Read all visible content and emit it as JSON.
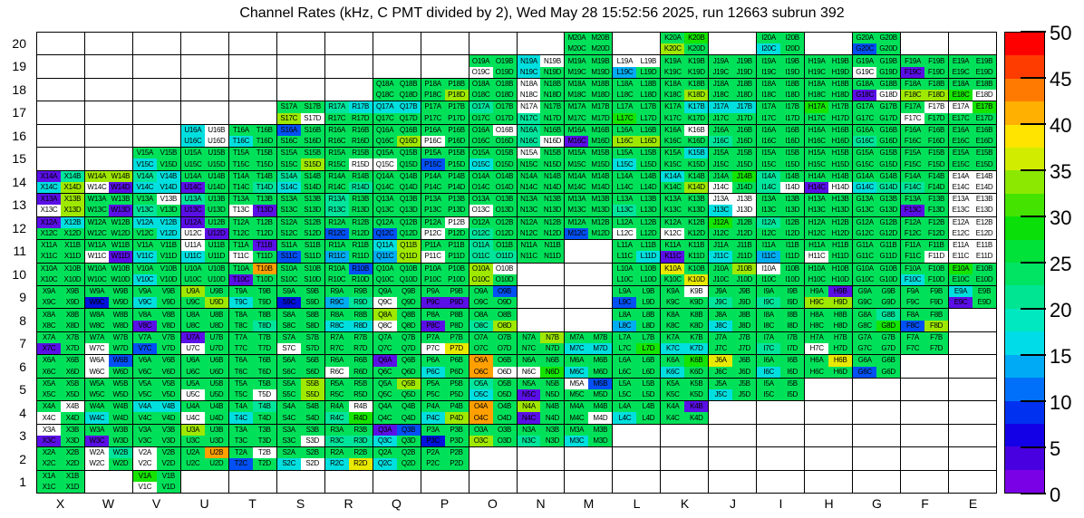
{
  "chart_data": {
    "type": "heatmap",
    "title": "Channel Rates (kHz, C PMT divided by 2), Wed May 28 15:52:56 2025, run 12663 subrun 392",
    "x_axis_labels": [
      "X",
      "W",
      "V",
      "U",
      "T",
      "S",
      "R",
      "Q",
      "P",
      "O",
      "N",
      "M",
      "L",
      "K",
      "J",
      "I",
      "H",
      "G",
      "F",
      "E"
    ],
    "y_axis_labels": [
      20,
      19,
      18,
      17,
      16,
      15,
      14,
      13,
      12,
      11,
      10,
      9,
      8,
      7,
      6,
      5,
      4,
      3,
      2,
      1
    ],
    "quadrant_suffixes": [
      "A",
      "B",
      "C",
      "D"
    ],
    "colorbar": {
      "min": 0,
      "max": 50,
      "tick_values": [
        50,
        45,
        40,
        35,
        30,
        25,
        20,
        15,
        10,
        5,
        0
      ],
      "band_colors_bottom_to_top": [
        "#7A00E6",
        "#4800E0",
        "#1400E6",
        "#0031F0",
        "#0070FA",
        "#00AAF5",
        "#00DCE8",
        "#00E8C0",
        "#00E592",
        "#00E363",
        "#00E139",
        "#0ADF0A",
        "#45E300",
        "#8CE800",
        "#D2EC00",
        "#FFE400",
        "#FFB000",
        "#FF7A00",
        "#FF3C00",
        "#FF0000"
      ]
    },
    "palette": {
      "g": "#00E159",
      "G": "#15E400",
      "t": "#00E59B",
      "c": "#00DFDF",
      "b": "#00ACF2",
      "B": "#0050F5",
      "D": "#0012DC",
      "P": "#5A0FE6",
      "y": "#9FE800",
      "Y": "#E9E900",
      "O": "#FFA000",
      "W": "#FFFFFF"
    },
    "cells_by_row": {
      "20": {
        "M": "gggg",
        "K": "gGyg",
        "I": "ggcg",
        "G": "ggBg"
      },
      "19": {
        "O": "ggWg",
        "N": "cWcg",
        "M": "gggg",
        "L": "WWbg",
        "K": "gggg",
        "J": "gggg",
        "I": "gggg",
        "H": "gggg",
        "G": "ggWg",
        "F": "ggPg",
        "E": "gggg"
      },
      "18": {
        "Q": "gggg",
        "P": "gggy",
        "O": "gggg",
        "N": "WgWg",
        "M": "gggg",
        "L": "gggg",
        "K": "gggy",
        "J": "gggg",
        "I": "gggg",
        "H": "gggg",
        "G": "ggPW",
        "F": "ggyy",
        "E": "ggGW"
      },
      "17": {
        "S": "ggyW",
        "R": "tcgg",
        "Q": "ccgg",
        "P": "gggg",
        "O": "tggg",
        "N": "Wgtg",
        "M": "gggg",
        "L": "ggGg",
        "K": "gcgg",
        "J": "ccgg",
        "I": "gggg",
        "H": "Gggg",
        "G": "gggg",
        "F": "gWWg",
        "E": "WGgg"
      },
      "16": {
        "U": "cWcW",
        "T": "ggcg",
        "S": "Bggg",
        "R": "gggg",
        "Q": "gggy",
        "P": "ggWg",
        "O": "gWgg",
        "N": "tgtW",
        "M": "ggPg",
        "L": "ggyy",
        "K": "gWgg",
        "J": "ggtg",
        "I": "gggg",
        "H": "gggg",
        "G": "ggtg",
        "F": "gggg",
        "E": "gggg"
      },
      "15": {
        "V": "ggcg",
        "U": "gggg",
        "T": "gggg",
        "S": "gggy",
        "R": "gggW",
        "Q": "ggWg",
        "P": "ggBg",
        "O": "ggcg",
        "N": "Wggg",
        "M": "gggg",
        "L": "ggcg",
        "K": "gcgg",
        "J": "gggg",
        "I": "gggg",
        "H": "gggg",
        "G": "gggg",
        "F": "gggg",
        "E": "gggg"
      },
      "14": {
        "X": "Ptcy",
        "W": "yyWP",
        "V": "tccc",
        "U": "ggPg",
        "T": "gggt",
        "S": "tgcg",
        "R": "gggt",
        "Q": "gggg",
        "P": "gggg",
        "O": "gggg",
        "N": "gggg",
        "M": "gggg",
        "L": "gggg",
        "K": "cggy",
        "J": "gGWg",
        "I": "tgtW",
        "H": "ggPW",
        "G": "ggct",
        "F": "ggtg",
        "E": "WWWW"
      },
      "13": {
        "X": "PyWy",
        "W": "gggP",
        "V": "gWtg",
        "U": "tgPg",
        "T": "ggWP",
        "S": "gggg",
        "R": "tgtg",
        "Q": "gggg",
        "P": "gggg",
        "O": "ggWg",
        "N": "gggg",
        "M": "gggg",
        "L": "ggtg",
        "K": "gggg",
        "J": "WWcW",
        "I": "gggg",
        "H": "gggg",
        "G": "gggg",
        "F": "ggPg",
        "E": "WWWW"
      },
      "12": {
        "X": "Pcgg",
        "W": "gggg",
        "V": "ccgc",
        "U": "PgWP",
        "T": "gggg",
        "S": "gggg",
        "R": "ggBg",
        "Q": "ggBg",
        "P": "gWWg",
        "O": "ggtg",
        "N": "gggg",
        "M": "ggBg",
        "L": "ggWg",
        "K": "ggWg",
        "J": "Gggg",
        "I": "tggg",
        "H": "gggg",
        "G": "gggg",
        "F": "gggg",
        "E": "WWWW"
      },
      "11": {
        "X": "gggg",
        "W": "ggWP",
        "V": "ggcg",
        "U": "Wgcg",
        "T": "gPWg",
        "S": "ggBg",
        "R": "ggbg",
        "Q": "cyby",
        "P": "ggWg",
        "O": "tgtt",
        "N": "gggg",
        "L": "gggc",
        "K": "ggPg",
        "J": "ggcg",
        "I": "ggbg",
        "H": "ggWg",
        "G": "gggg",
        "F": "gggW",
        "E": "WWWW"
      },
      "10": {
        "X": "gggg",
        "W": "gggg",
        "V": "ggcg",
        "U": "gggg",
        "T": "gOPg",
        "S": "gggg",
        "R": "gBgg",
        "Q": "gggg",
        "P": "gggg",
        "O": "yWyg",
        "L": "gggg",
        "K": "YggY",
        "J": "gygg",
        "I": "Wggg",
        "H": "gggg",
        "G": "gggg",
        "F": "ggcg",
        "E": "Gggg"
      },
      "9": {
        "X": "gggg",
        "W": "ggDg",
        "V": "ggcg",
        "U": "yggy",
        "T": "ggcg",
        "S": "ggDg",
        "R": "ggbt",
        "Q": "ggWg",
        "P": "ggPP",
        "O": "gBgg",
        "L": "ggBg",
        "K": "gWgg",
        "J": "ggtg",
        "I": "ggtg",
        "H": "gPyy",
        "G": "gggg",
        "F": "gggg",
        "E": "cgPg"
      },
      "8": {
        "X": "gggg",
        "W": "gggg",
        "V": "ggPg",
        "U": "gggg",
        "T": "gggt",
        "S": "gggg",
        "R": "ggcc",
        "Q": "ygWg",
        "P": "ggPg",
        "O": "ggty",
        "L": "ggbg",
        "K": "gggg",
        "J": "ggcg",
        "I": "gggg",
        "H": "gggg",
        "G": "gtgG",
        "F": "ggBy"
      },
      "7": {
        "X": "ggPg",
        "W": "ggWg",
        "V": "ggBg",
        "U": "PgWg",
        "T": "gggg",
        "S": "ggWg",
        "R": "gggg",
        "Q": "gggg",
        "P": "ggWY",
        "O": "gggg",
        "N": "gygg",
        "M": "ggcc",
        "L": "gggG",
        "K": "ggcc",
        "J": "gggg",
        "I": "ggtg",
        "H": "ggWg",
        "G": "gggg",
        "F": "gggg"
      },
      "6": {
        "X": "gggg",
        "W": "WBWg",
        "V": "gggg",
        "U": "gggg",
        "T": "gggg",
        "S": "gggg",
        "R": "ggWg",
        "Q": "Pggg",
        "P": "ggcg",
        "O": "OgOW",
        "N": "ggWG",
        "M": "ggcg",
        "L": "gggg",
        "K": "gGcg",
        "J": "Yggg",
        "I": "ggcg",
        "H": "gYgg",
        "G": "ggBg"
      },
      "5": {
        "X": "gggg",
        "W": "gggg",
        "V": "gggg",
        "U": "ggWg",
        "T": "gggW",
        "S": "gygy",
        "R": "gggg",
        "Q": "gygg",
        "P": "gggg",
        "O": "tgcg",
        "N": "ggPg",
        "M": "WBgg",
        "L": "gggg",
        "K": "gggg",
        "J": "ggcg",
        "I": "gggg"
      },
      "4": {
        "X": "gWWg",
        "W": "ggcg",
        "V": "ccgg",
        "U": "ggWg",
        "T": "gtcg",
        "S": "gggg",
        "R": "gWtG",
        "Q": "gggg",
        "P": "ggcy",
        "O": "OgOg",
        "N": "ygPg",
        "M": "gggW",
        "L": "ggcg",
        "K": "gPgg"
      },
      "3": {
        "X": "WgPg",
        "W": "ggPg",
        "V": "gggg",
        "U": "yggg",
        "T": "gggg",
        "S": "gggW",
        "R": "ggtt",
        "Q": "PBcg",
        "P": "ggDg",
        "O": "ggyg",
        "N": "ggtg",
        "M": "ggcg"
      },
      "2": {
        "X": "gggg",
        "W": "WtWg",
        "V": "WgWg",
        "U": "gOgg",
        "T": "gWBg",
        "S": "ggcW",
        "R": "ggcY",
        "Q": "ggcg",
        "P": "gggg"
      },
      "1": {
        "X": "gggg",
        "V": "GgWg"
      }
    }
  }
}
